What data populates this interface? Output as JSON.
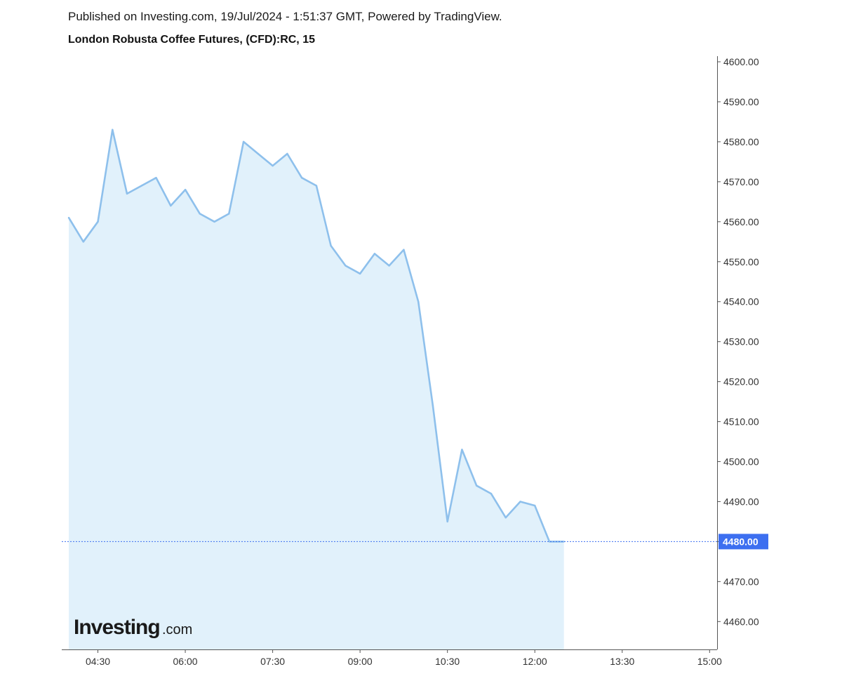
{
  "header": {
    "published": "Published on Investing.com, 19/Jul/2024 - 1:51:37 GMT, Powered by TradingView.",
    "title": "London Robusta Coffee Futures, (CFD):RC, 15"
  },
  "logo": {
    "main": "Investing",
    "suffix": ".com"
  },
  "colors": {
    "line": "#8ec0ec",
    "fill": "#e1f1fb",
    "last_price": "#3d6ff0",
    "axis": "#555555"
  },
  "chart_data": {
    "type": "area",
    "title": "London Robusta Coffee Futures, (CFD):RC, 15",
    "xlabel": "",
    "ylabel": "",
    "x_ticks": [
      "04:30",
      "06:00",
      "07:30",
      "09:00",
      "10:30",
      "12:00",
      "13:30",
      "15:00"
    ],
    "y_ticks": [
      "4460.00",
      "4470.00",
      "4480.00",
      "4490.00",
      "4500.00",
      "4510.00",
      "4520.00",
      "4530.00",
      "4540.00",
      "4550.00",
      "4560.00",
      "4570.00",
      "4580.00",
      "4590.00",
      "4600.00"
    ],
    "ylim": [
      4452.5,
      4602.0
    ],
    "xlim": [
      "04:00",
      "15:00"
    ],
    "last_price": "4480.00",
    "grid": false,
    "series": [
      {
        "x": [
          "04:00",
          "04:15",
          "04:30",
          "04:45",
          "05:00",
          "05:15",
          "05:30",
          "05:45",
          "06:00",
          "06:15",
          "06:30",
          "06:45",
          "07:00",
          "07:15",
          "07:30",
          "07:45",
          "08:00",
          "08:15",
          "08:30",
          "08:45",
          "09:00",
          "09:15",
          "09:30",
          "09:45",
          "10:00",
          "10:15",
          "10:30",
          "10:45",
          "11:00",
          "11:15",
          "11:30",
          "11:45",
          "12:00",
          "12:15",
          "12:30"
        ],
        "values": [
          4561,
          4555,
          4560,
          4583,
          4567,
          4569,
          4571,
          4564,
          4568,
          4562,
          4560,
          4562,
          4580,
          4577,
          4574,
          4577,
          4571,
          4569,
          4554,
          4549,
          4547,
          4552,
          4549,
          4553,
          4540,
          4514,
          4485,
          4503,
          4494,
          4492,
          4486,
          4490,
          4489,
          4480,
          4480
        ]
      }
    ]
  }
}
